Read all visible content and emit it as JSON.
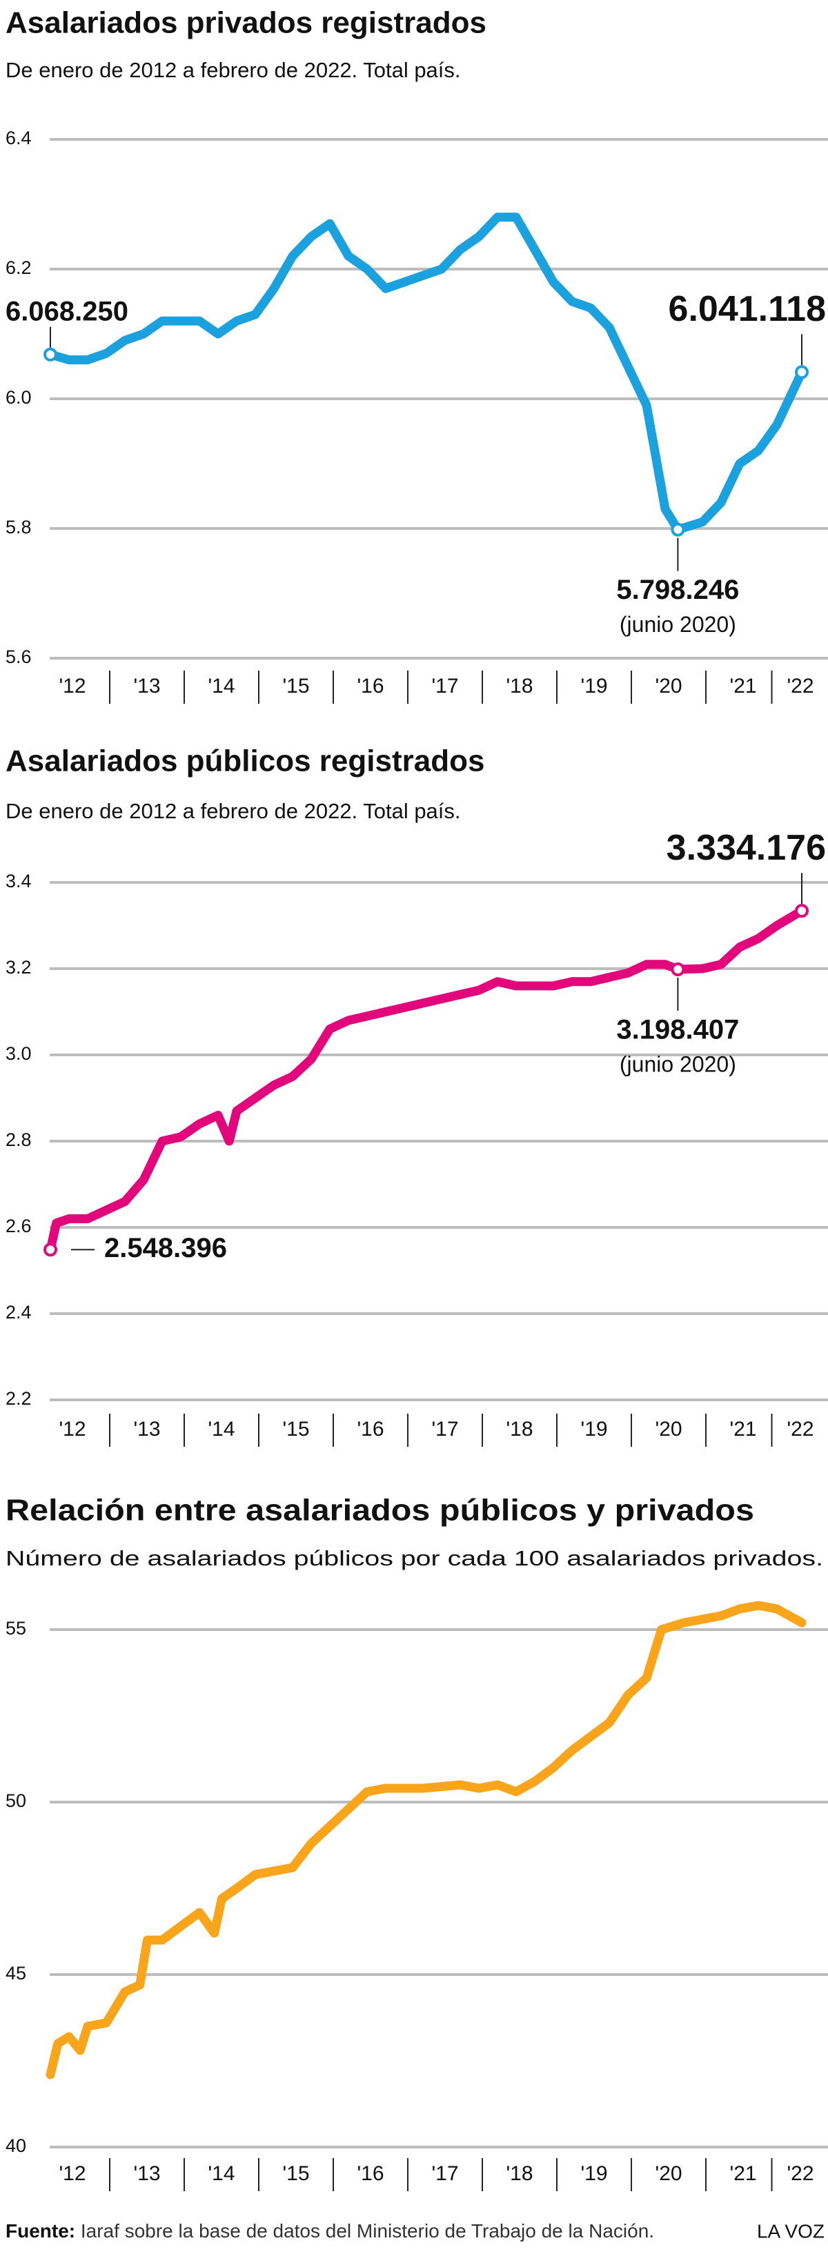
{
  "chart_data": [
    {
      "type": "line",
      "title": "Asalariados privados registrados",
      "subtitle": "De enero de 2012 a febrero de 2022. Total país.",
      "color": "#1ba1dd",
      "x": [
        2012,
        2012.25,
        2012.5,
        2012.75,
        2013,
        2013.25,
        2013.5,
        2013.75,
        2014,
        2014.25,
        2014.5,
        2014.75,
        2015,
        2015.25,
        2015.5,
        2015.75,
        2016,
        2016.25,
        2016.5,
        2016.75,
        2017,
        2017.25,
        2017.5,
        2017.75,
        2018,
        2018.25,
        2018.5,
        2018.75,
        2019,
        2019.25,
        2019.5,
        2019.75,
        2020,
        2020.25,
        2020.42,
        2020.75,
        2021,
        2021.25,
        2021.5,
        2021.75,
        2022.083
      ],
      "values": [
        6.06825,
        6.06,
        6.06,
        6.07,
        6.09,
        6.1,
        6.12,
        6.12,
        6.12,
        6.1,
        6.12,
        6.13,
        6.17,
        6.22,
        6.25,
        6.27,
        6.22,
        6.2,
        6.17,
        6.18,
        6.19,
        6.2,
        6.23,
        6.25,
        6.28,
        6.28,
        6.23,
        6.18,
        6.15,
        6.14,
        6.11,
        6.05,
        5.99,
        5.83,
        5.798246,
        5.81,
        5.84,
        5.9,
        5.92,
        5.96,
        6.041118
      ],
      "value_labels": [
        "6.068.250",
        null,
        null,
        null,
        null,
        null,
        null,
        null,
        null,
        null,
        null,
        null,
        null,
        null,
        null,
        null,
        null,
        null,
        null,
        null,
        null,
        null,
        null,
        null,
        null,
        null,
        null,
        null,
        null,
        null,
        null,
        null,
        null,
        null,
        "5.798.246",
        null,
        null,
        null,
        null,
        null,
        "6.041.118"
      ],
      "value_notes": [
        null,
        null,
        null,
        null,
        null,
        null,
        null,
        null,
        null,
        null,
        null,
        null,
        null,
        null,
        null,
        null,
        null,
        null,
        null,
        null,
        null,
        null,
        null,
        null,
        null,
        null,
        null,
        null,
        null,
        null,
        null,
        null,
        null,
        null,
        "(junio 2020)",
        null,
        null,
        null,
        null,
        null,
        null
      ],
      "xlim": [
        2012,
        2022.083
      ],
      "xticks": [
        {
          "value": 2012,
          "label": "'12"
        },
        {
          "value": 2013,
          "label": "'13"
        },
        {
          "value": 2014,
          "label": "'14"
        },
        {
          "value": 2015,
          "label": "'15"
        },
        {
          "value": 2016,
          "label": "'16"
        },
        {
          "value": 2017,
          "label": "'17"
        },
        {
          "value": 2018,
          "label": "'18"
        },
        {
          "value": 2019,
          "label": "'19"
        },
        {
          "value": 2020,
          "label": "'20"
        },
        {
          "value": 2021,
          "label": "'21"
        },
        {
          "value": 2022,
          "label": "'22"
        }
      ],
      "ylim": [
        5.6,
        6.4
      ],
      "yticks": [
        5.6,
        5.8,
        {
          "value": 6,
          "label": "6.0"
        },
        6.2,
        6.4
      ],
      "grid": true
    },
    {
      "type": "line",
      "title": "Asalariados públicos registrados",
      "subtitle": "De enero de 2012 a febrero de 2022. Total país.",
      "color": "#e2087c",
      "x": [
        2012,
        2012.08,
        2012.25,
        2012.5,
        2012.75,
        2013,
        2013.25,
        2013.5,
        2013.75,
        2014,
        2014.25,
        2014.4,
        2014.5,
        2014.75,
        2015,
        2015.25,
        2015.5,
        2015.75,
        2016,
        2016.25,
        2016.5,
        2016.75,
        2017,
        2017.5,
        2017.75,
        2018,
        2018.25,
        2018.75,
        2019,
        2019.25,
        2019.5,
        2019.75,
        2020,
        2020.25,
        2020.42,
        2020.75,
        2021,
        2021.25,
        2021.5,
        2021.75,
        2022.083
      ],
      "values": [
        2.548396,
        2.61,
        2.62,
        2.62,
        2.64,
        2.66,
        2.71,
        2.8,
        2.81,
        2.84,
        2.86,
        2.8,
        2.87,
        2.9,
        2.93,
        2.95,
        2.99,
        3.06,
        3.08,
        3.09,
        3.1,
        3.11,
        3.12,
        3.14,
        3.15,
        3.17,
        3.16,
        3.16,
        3.17,
        3.17,
        3.18,
        3.19,
        3.21,
        3.21,
        3.198407,
        3.2,
        3.21,
        3.25,
        3.27,
        3.3,
        3.334176
      ],
      "value_labels": [
        "2.548.396",
        null,
        null,
        null,
        null,
        null,
        null,
        null,
        null,
        null,
        null,
        null,
        null,
        null,
        null,
        null,
        null,
        null,
        null,
        null,
        null,
        null,
        null,
        null,
        null,
        null,
        null,
        null,
        null,
        null,
        null,
        null,
        null,
        null,
        "3.198.407",
        null,
        null,
        null,
        null,
        null,
        "3.334.176"
      ],
      "value_notes": [
        null,
        null,
        null,
        null,
        null,
        null,
        null,
        null,
        null,
        null,
        null,
        null,
        null,
        null,
        null,
        null,
        null,
        null,
        null,
        null,
        null,
        null,
        null,
        null,
        null,
        null,
        null,
        null,
        null,
        null,
        null,
        null,
        null,
        null,
        "(junio 2020)",
        null,
        null,
        null,
        null,
        null,
        null
      ],
      "xlim": [
        2012,
        2022.083
      ],
      "xticks": [
        {
          "value": 2012,
          "label": "'12"
        },
        {
          "value": 2013,
          "label": "'13"
        },
        {
          "value": 2014,
          "label": "'14"
        },
        {
          "value": 2015,
          "label": "'15"
        },
        {
          "value": 2016,
          "label": "'16"
        },
        {
          "value": 2017,
          "label": "'17"
        },
        {
          "value": 2018,
          "label": "'18"
        },
        {
          "value": 2019,
          "label": "'19"
        },
        {
          "value": 2020,
          "label": "'20"
        },
        {
          "value": 2021,
          "label": "'21"
        },
        {
          "value": 2022,
          "label": "'22"
        }
      ],
      "ylim": [
        2.2,
        3.4
      ],
      "yticks": [
        2.2,
        2.4,
        2.6,
        2.8,
        {
          "value": 3,
          "label": "3.0"
        },
        3.2,
        3.4
      ],
      "grid": true
    },
    {
      "type": "line",
      "title": "Relación entre asalariados públicos y privados",
      "subtitle": "Número de asalariados públicos por cada 100 asalariados privados.",
      "color": "#f8a51c",
      "x": [
        2012,
        2012.1,
        2012.25,
        2012.4,
        2012.5,
        2012.75,
        2013,
        2013.2,
        2013.3,
        2013.5,
        2013.75,
        2014,
        2014.2,
        2014.3,
        2014.5,
        2014.75,
        2015,
        2015.25,
        2015.5,
        2015.75,
        2016,
        2016.25,
        2016.5,
        2016.75,
        2017,
        2017.5,
        2017.75,
        2018,
        2018.25,
        2018.5,
        2018.75,
        2019,
        2019.25,
        2019.5,
        2019.75,
        2020,
        2020.2,
        2020.5,
        2020.75,
        2021,
        2021.25,
        2021.5,
        2021.75,
        2022.083
      ],
      "values": [
        42.1,
        43.0,
        43.2,
        42.8,
        43.5,
        43.6,
        44.5,
        44.7,
        46.0,
        46.0,
        46.4,
        46.8,
        46.2,
        47.2,
        47.5,
        47.9,
        48.0,
        48.1,
        48.8,
        49.3,
        49.8,
        50.3,
        50.4,
        50.4,
        50.4,
        50.5,
        50.4,
        50.5,
        50.3,
        50.6,
        51.0,
        51.5,
        51.9,
        52.3,
        53.1,
        53.6,
        55.0,
        55.2,
        55.3,
        55.4,
        55.6,
        55.7,
        55.6,
        55.2
      ],
      "xlim": [
        2012,
        2022.083
      ],
      "xticks": [
        {
          "value": 2012,
          "label": "'12"
        },
        {
          "value": 2013,
          "label": "'13"
        },
        {
          "value": 2014,
          "label": "'14"
        },
        {
          "value": 2015,
          "label": "'15"
        },
        {
          "value": 2016,
          "label": "'16"
        },
        {
          "value": 2017,
          "label": "'17"
        },
        {
          "value": 2018,
          "label": "'18"
        },
        {
          "value": 2019,
          "label": "'19"
        },
        {
          "value": 2020,
          "label": "'20"
        },
        {
          "value": 2021,
          "label": "'21"
        },
        {
          "value": 2022,
          "label": "'22"
        }
      ],
      "ylim": [
        40,
        56
      ],
      "yticks": [
        40,
        45,
        50,
        55
      ],
      "grid": true
    }
  ],
  "footer": {
    "source_label": "Fuente:",
    "source": "Iaraf sobre la base de datos del Ministerio de Trabajo de la Nación.",
    "credit": "LA VOZ"
  }
}
